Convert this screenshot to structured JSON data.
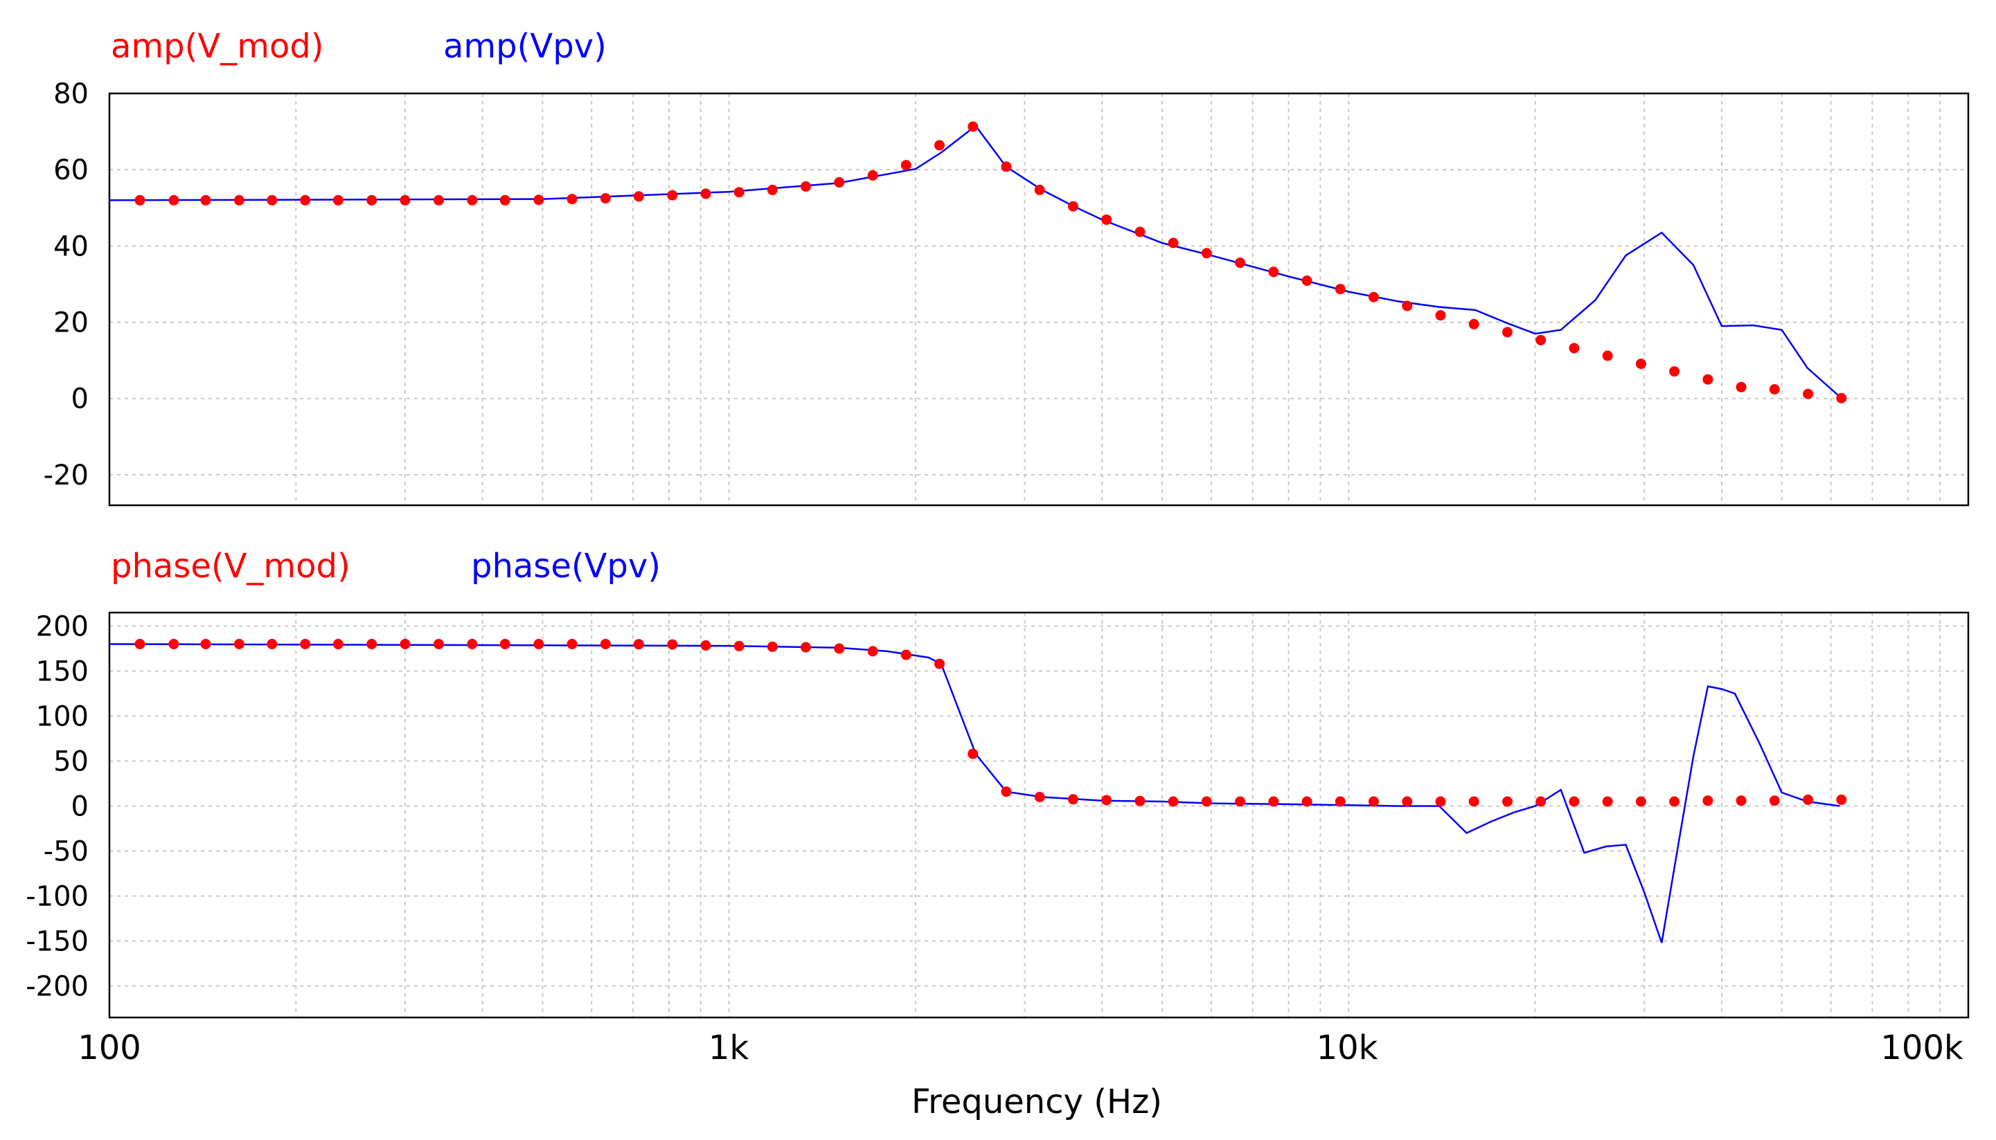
{
  "chart_data": [
    {
      "type": "line",
      "panel": "amplitude",
      "xscale": "log",
      "xlim": [
        100,
        100000
      ],
      "ylim": [
        -28,
        80
      ],
      "yticks": [
        80,
        60,
        40,
        20,
        0,
        -20
      ],
      "grid": true,
      "series": [
        {
          "name": "amp(V_mod)",
          "label": "amp(V_mod)",
          "color": "#ff0000",
          "style": "markers",
          "x": [
            112,
            127,
            143,
            162,
            183,
            207,
            234,
            265,
            300,
            340,
            385,
            435,
            493,
            558,
            632,
            715,
            810,
            917,
            1038,
            1175,
            1330,
            1506,
            1706,
            1931,
            2186,
            2475,
            2802,
            3172,
            3592,
            4066,
            4604,
            5212,
            5900,
            6681,
            7564,
            8563,
            9695,
            10976,
            12427,
            14069,
            15929,
            18034,
            20418,
            23117,
            26172,
            29631,
            33548,
            37982,
            43002,
            48686,
            55122,
            62408
          ],
          "y": [
            52,
            52,
            52,
            52,
            52,
            52,
            52,
            52,
            52,
            52,
            52,
            52,
            52.1,
            52.3,
            52.5,
            53,
            53.3,
            53.7,
            54.1,
            54.7,
            55.6,
            56.7,
            58.5,
            61.2,
            66.4,
            71.3,
            60.8,
            54.7,
            50.4,
            46.9,
            43.7,
            40.8,
            38.1,
            35.6,
            33.2,
            30.9,
            28.7,
            26.6,
            24.3,
            21.8,
            19.5,
            17.4,
            15.3,
            13.2,
            11.2,
            9.1,
            7.1,
            5.0,
            3.0,
            2.4,
            1.2,
            0.1
          ]
        },
        {
          "name": "amp(Vpv)",
          "label": "amp(Vpv)",
          "color": "#0000ff",
          "style": "line",
          "x": [
            100,
            500,
            1000,
            1500,
            2000,
            2200,
            2500,
            2800,
            3200,
            3600,
            4000,
            5000,
            6000,
            8000,
            10000,
            12000,
            14000,
            16000,
            18000,
            20000,
            22000,
            25000,
            28000,
            32000,
            36000,
            40000,
            45000,
            50000,
            55000,
            62000
          ],
          "y": [
            52,
            52.3,
            54.2,
            56.5,
            60.2,
            64.5,
            71.5,
            60.8,
            54.7,
            50.4,
            46.9,
            40.8,
            37.5,
            32,
            28,
            25.5,
            24,
            23.2,
            19.8,
            17,
            18,
            25.8,
            37.5,
            43.5,
            35,
            19,
            19.2,
            18,
            8,
            0.5
          ]
        }
      ]
    },
    {
      "type": "line",
      "panel": "phase",
      "xscale": "log",
      "xlim": [
        100,
        100000
      ],
      "ylim": [
        -235,
        215
      ],
      "yticks": [
        200,
        150,
        100,
        50,
        0,
        -50,
        -100,
        -150,
        -200
      ],
      "grid": true,
      "xlabel": "Frequency (Hz)",
      "xticks": [
        {
          "v": 100,
          "label": "100"
        },
        {
          "v": 1000,
          "label": "1k"
        },
        {
          "v": 10000,
          "label": "10k"
        },
        {
          "v": 100000,
          "label": "100k"
        }
      ],
      "series": [
        {
          "name": "phase(V_mod)",
          "label": "phase(V_mod)",
          "color": "#ff0000",
          "style": "markers",
          "x": [
            112,
            127,
            143,
            162,
            183,
            207,
            234,
            265,
            300,
            340,
            385,
            435,
            493,
            558,
            632,
            715,
            810,
            917,
            1038,
            1175,
            1330,
            1506,
            1706,
            1931,
            2186,
            2475,
            2802,
            3172,
            3592,
            4066,
            4604,
            5212,
            5900,
            6681,
            7564,
            8563,
            9695,
            10976,
            12427,
            14069,
            15929,
            18034,
            20418,
            23117,
            26172,
            29631,
            33548,
            37982,
            43002,
            48686,
            55122,
            62408
          ],
          "y": [
            180,
            180,
            180,
            180,
            180,
            180,
            180,
            180,
            180,
            180,
            180,
            180,
            180,
            180,
            180,
            179.8,
            179.5,
            178.5,
            177.8,
            177,
            176.5,
            175,
            172,
            168,
            158,
            58,
            16,
            10,
            7.5,
            6.5,
            5.5,
            5,
            5,
            5,
            5,
            5,
            5,
            5,
            5,
            5,
            5,
            5,
            5,
            5,
            5,
            5,
            5,
            6,
            6,
            6,
            7,
            7
          ]
        },
        {
          "name": "phase(Vpv)",
          "label": "phase(Vpv)",
          "color": "#0000ff",
          "style": "line",
          "x": [
            100,
            1000,
            1500,
            1800,
            2100,
            2200,
            2500,
            2800,
            3200,
            4000,
            5000,
            6000,
            8000,
            10000,
            12000,
            14000,
            15500,
            17000,
            18500,
            20000,
            22000,
            24000,
            26000,
            28000,
            30000,
            32000,
            34000,
            36000,
            38000,
            40000,
            42000,
            46000,
            50000,
            55000,
            62000
          ],
          "y": [
            180,
            178,
            176,
            172,
            165,
            158,
            58,
            16,
            10,
            6,
            5,
            3,
            2,
            1,
            0,
            0,
            -30,
            -17,
            -7,
            0,
            18,
            -52,
            -45,
            -43,
            -96,
            -152,
            -45,
            55,
            133,
            130,
            125,
            70,
            15,
            5,
            0
          ]
        }
      ]
    }
  ]
}
